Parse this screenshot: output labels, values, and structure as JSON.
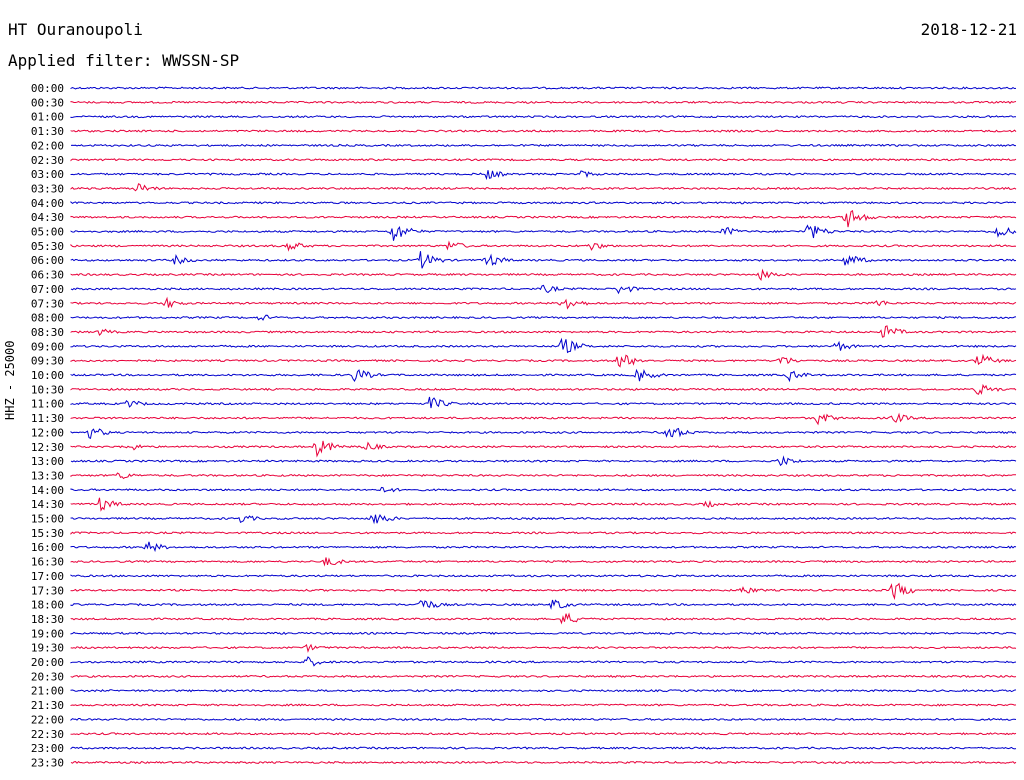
{
  "header": {
    "station": "HT Ouranoupoli",
    "date": "2018-12-21",
    "filter": "Applied filter: WWSSN-SP"
  },
  "colors": {
    "odd": "#0000cc",
    "even": "#e8003a"
  },
  "chart_data": {
    "type": "line",
    "title": "HT Ouranoupoli",
    "date": "2018-12-21",
    "ylabel": "HHZ - 25000",
    "xlabel": "",
    "grid": false,
    "rows": [
      {
        "time": "00:00",
        "color": "blue",
        "events": []
      },
      {
        "time": "00:30",
        "color": "red",
        "events": []
      },
      {
        "time": "01:00",
        "color": "blue",
        "events": []
      },
      {
        "time": "01:30",
        "color": "red",
        "events": []
      },
      {
        "time": "02:00",
        "color": "blue",
        "events": []
      },
      {
        "time": "02:30",
        "color": "red",
        "events": []
      },
      {
        "time": "03:00",
        "color": "blue",
        "events": [
          [
            0.44,
            6
          ],
          [
            0.54,
            4
          ]
        ]
      },
      {
        "time": "03:30",
        "color": "red",
        "events": [
          [
            0.07,
            6
          ]
        ]
      },
      {
        "time": "04:00",
        "color": "blue",
        "events": []
      },
      {
        "time": "04:30",
        "color": "red",
        "events": [
          [
            0.82,
            12
          ]
        ]
      },
      {
        "time": "05:00",
        "color": "blue",
        "events": [
          [
            0.34,
            12
          ],
          [
            0.69,
            6
          ],
          [
            0.78,
            10
          ],
          [
            0.98,
            8
          ]
        ]
      },
      {
        "time": "05:30",
        "color": "red",
        "events": [
          [
            0.23,
            6
          ],
          [
            0.4,
            6
          ],
          [
            0.55,
            5
          ]
        ]
      },
      {
        "time": "06:00",
        "color": "blue",
        "events": [
          [
            0.11,
            5
          ],
          [
            0.37,
            10
          ],
          [
            0.44,
            8
          ],
          [
            0.82,
            8
          ]
        ]
      },
      {
        "time": "06:30",
        "color": "red",
        "events": [
          [
            0.73,
            6
          ]
        ]
      },
      {
        "time": "07:00",
        "color": "blue",
        "events": [
          [
            0.5,
            5
          ],
          [
            0.58,
            6
          ]
        ]
      },
      {
        "time": "07:30",
        "color": "red",
        "events": [
          [
            0.1,
            6
          ],
          [
            0.52,
            10
          ],
          [
            0.85,
            5
          ]
        ]
      },
      {
        "time": "08:00",
        "color": "blue",
        "events": [
          [
            0.2,
            4
          ]
        ]
      },
      {
        "time": "08:30",
        "color": "red",
        "events": [
          [
            0.03,
            4
          ],
          [
            0.86,
            8
          ]
        ]
      },
      {
        "time": "09:00",
        "color": "blue",
        "events": [
          [
            0.52,
            10
          ],
          [
            0.81,
            6
          ]
        ]
      },
      {
        "time": "09:30",
        "color": "red",
        "events": [
          [
            0.58,
            10
          ],
          [
            0.75,
            6
          ],
          [
            0.96,
            8
          ]
        ]
      },
      {
        "time": "10:00",
        "color": "blue",
        "events": [
          [
            0.3,
            8
          ],
          [
            0.6,
            8
          ],
          [
            0.76,
            6
          ]
        ]
      },
      {
        "time": "10:30",
        "color": "red",
        "events": [
          [
            0.96,
            7
          ]
        ]
      },
      {
        "time": "11:00",
        "color": "blue",
        "events": [
          [
            0.06,
            5
          ],
          [
            0.38,
            8
          ]
        ]
      },
      {
        "time": "11:30",
        "color": "red",
        "events": [
          [
            0.79,
            7
          ],
          [
            0.87,
            6
          ]
        ]
      },
      {
        "time": "12:00",
        "color": "blue",
        "events": [
          [
            0.02,
            7
          ],
          [
            0.63,
            10
          ]
        ]
      },
      {
        "time": "12:30",
        "color": "red",
        "events": [
          [
            0.06,
            5
          ],
          [
            0.26,
            10
          ],
          [
            0.31,
            6
          ]
        ]
      },
      {
        "time": "13:00",
        "color": "blue",
        "events": [
          [
            0.75,
            6
          ]
        ]
      },
      {
        "time": "13:30",
        "color": "red",
        "events": [
          [
            0.05,
            5
          ]
        ]
      },
      {
        "time": "14:00",
        "color": "blue",
        "events": [
          [
            0.33,
            4
          ]
        ]
      },
      {
        "time": "14:30",
        "color": "red",
        "events": [
          [
            0.03,
            8
          ],
          [
            0.67,
            4
          ]
        ]
      },
      {
        "time": "15:00",
        "color": "blue",
        "events": [
          [
            0.18,
            5
          ],
          [
            0.32,
            8
          ]
        ]
      },
      {
        "time": "15:30",
        "color": "red",
        "events": []
      },
      {
        "time": "16:00",
        "color": "blue",
        "events": [
          [
            0.08,
            7
          ]
        ]
      },
      {
        "time": "16:30",
        "color": "red",
        "events": [
          [
            0.27,
            6
          ]
        ]
      },
      {
        "time": "17:00",
        "color": "blue",
        "events": []
      },
      {
        "time": "17:30",
        "color": "red",
        "events": [
          [
            0.71,
            5
          ],
          [
            0.87,
            10
          ]
        ]
      },
      {
        "time": "18:00",
        "color": "blue",
        "events": [
          [
            0.37,
            8
          ],
          [
            0.51,
            7
          ]
        ]
      },
      {
        "time": "18:30",
        "color": "red",
        "events": [
          [
            0.52,
            8
          ]
        ]
      },
      {
        "time": "19:00",
        "color": "blue",
        "events": []
      },
      {
        "time": "19:30",
        "color": "red",
        "events": [
          [
            0.25,
            4
          ]
        ]
      },
      {
        "time": "20:00",
        "color": "blue",
        "events": [
          [
            0.25,
            6
          ]
        ]
      },
      {
        "time": "20:30",
        "color": "red",
        "events": []
      },
      {
        "time": "21:00",
        "color": "blue",
        "events": []
      },
      {
        "time": "21:30",
        "color": "red",
        "events": []
      },
      {
        "time": "22:00",
        "color": "blue",
        "events": []
      },
      {
        "time": "22:30",
        "color": "red",
        "events": []
      },
      {
        "time": "23:00",
        "color": "blue",
        "events": []
      },
      {
        "time": "23:30",
        "color": "red",
        "events": []
      }
    ]
  }
}
